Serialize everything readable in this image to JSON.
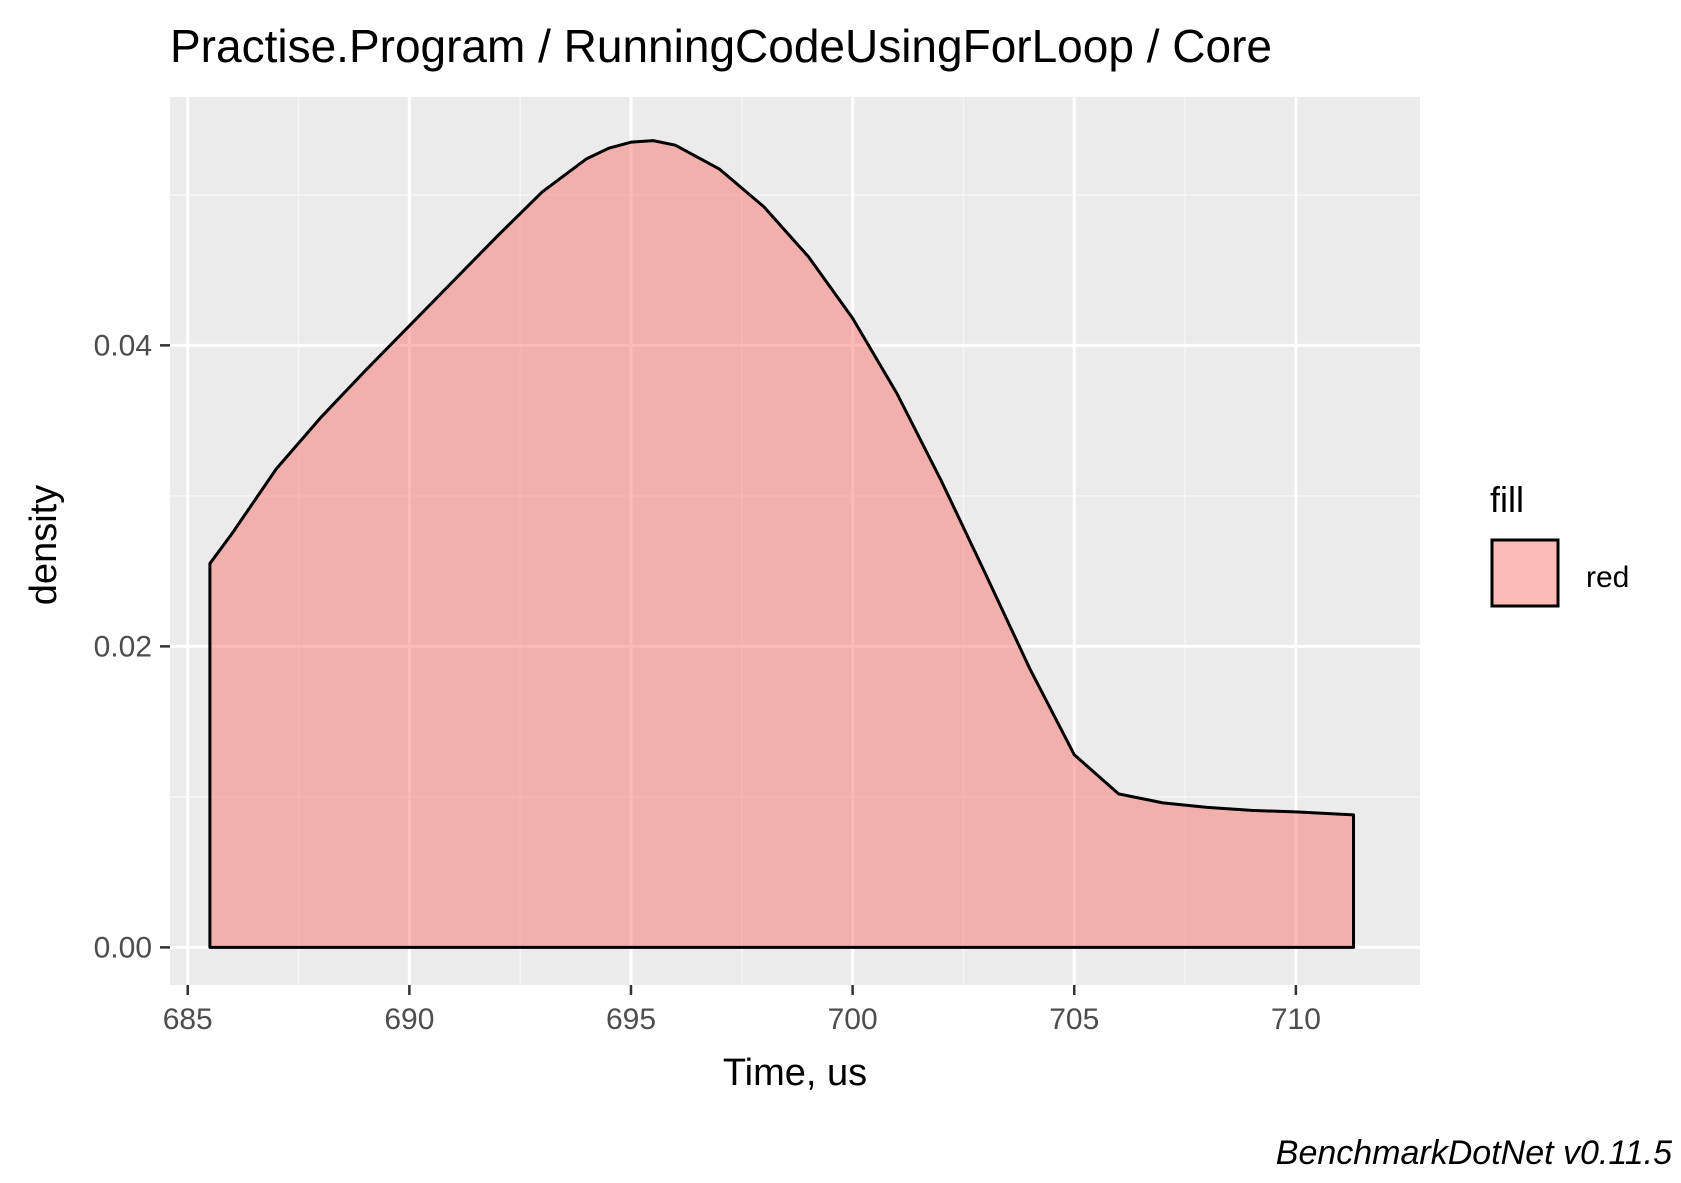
{
  "chart_data": {
    "type": "area",
    "title": "Practise.Program / RunningCodeUsingForLoop / Core",
    "xlabel": "Time, us",
    "ylabel": "density",
    "caption": "BenchmarkDotNet v0.11.5",
    "xlim": [
      684.6,
      712.8
    ],
    "ylim": [
      -0.0025,
      0.0565
    ],
    "x_ticks": [
      {
        "value": 685,
        "label": "685"
      },
      {
        "value": 690,
        "label": "690"
      },
      {
        "value": 695,
        "label": "695"
      },
      {
        "value": 700,
        "label": "700"
      },
      {
        "value": 705,
        "label": "705"
      },
      {
        "value": 710,
        "label": "710"
      }
    ],
    "y_ticks": [
      {
        "value": 0.0,
        "label": "0.00"
      },
      {
        "value": 0.02,
        "label": "0.02"
      },
      {
        "value": 0.04,
        "label": "0.04"
      }
    ],
    "x_minor_ticks": [
      687.5,
      692.5,
      697.5,
      702.5,
      707.5
    ],
    "y_minor_ticks": [
      0.01,
      0.03,
      0.05
    ],
    "grid": true,
    "legend": {
      "title": "fill",
      "position": "right",
      "entries": [
        {
          "label": "red",
          "color": "#f8766d"
        }
      ]
    },
    "series": [
      {
        "name": "red",
        "color": "#f8766d",
        "x": [
          685.5,
          686.0,
          687.0,
          688.0,
          689.0,
          690.0,
          691.0,
          692.0,
          693.0,
          694.0,
          694.5,
          695.0,
          695.5,
          696.0,
          697.0,
          698.0,
          699.0,
          700.0,
          701.0,
          702.0,
          703.0,
          704.0,
          705.0,
          706.0,
          707.0,
          708.0,
          709.0,
          710.0,
          711.3
        ],
        "y": [
          0.0255,
          0.0275,
          0.0318,
          0.0352,
          0.0383,
          0.0413,
          0.0443,
          0.0473,
          0.0502,
          0.0524,
          0.0531,
          0.0535,
          0.0536,
          0.0533,
          0.0517,
          0.0492,
          0.0459,
          0.0418,
          0.0368,
          0.031,
          0.0248,
          0.0185,
          0.0128,
          0.0102,
          0.0096,
          0.0093,
          0.0091,
          0.009,
          0.0088
        ]
      }
    ]
  },
  "colors": {
    "panel_background": "#ebebeb",
    "grid_major": "#ffffff",
    "grid_minor": "#f5f5f5",
    "outline": "#000000"
  }
}
